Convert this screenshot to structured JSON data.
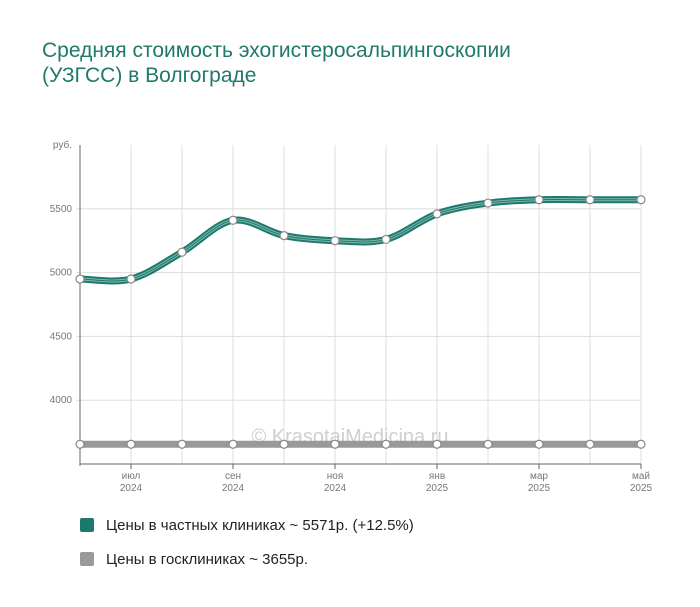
{
  "title": "Средняя стоимость эхогистеросальпингоскопии (УЗГСС) в Волгограде",
  "watermark": "© KrasotaiMedicina.ru",
  "colors": {
    "private": "#1b7a6c",
    "public": "#999999",
    "grid": "#dddddd",
    "axis": "#666666",
    "tick_text": "#777777"
  },
  "legend": [
    {
      "label": "Цены в частных клиниках ~ 5571р. (+12.5%)",
      "color": "#1b7a6c"
    },
    {
      "label": "Цены в госклиниках ~ 3655р.",
      "color": "#999999"
    }
  ],
  "chart_data": {
    "type": "line",
    "ylabel": "руб.",
    "ylim": [
      3500,
      6000
    ],
    "yticks": [
      4000,
      4500,
      5000,
      5500
    ],
    "x": [
      "2024-06",
      "2024-07",
      "2024-08",
      "2024-09",
      "2024-10",
      "2024-11",
      "2024-12",
      "2025-01",
      "2025-02",
      "2025-03",
      "2025-04",
      "2025-05"
    ],
    "xtick_labels": [
      {
        "month": "июл",
        "year": "2024"
      },
      {
        "month": "сен",
        "year": "2024"
      },
      {
        "month": "ноя",
        "year": "2024"
      },
      {
        "month": "янв",
        "year": "2025"
      },
      {
        "month": "мар",
        "year": "2025"
      },
      {
        "month": "май",
        "year": "2025"
      }
    ],
    "xtick_positions": [
      1,
      3,
      5,
      7,
      9,
      11
    ],
    "grid": true,
    "series": [
      {
        "name": "Цены в частных клиниках ~ 5571р. (+12.5%)",
        "values": [
          4950,
          4950,
          5160,
          5410,
          5290,
          5250,
          5260,
          5460,
          5545,
          5571,
          5571,
          5571
        ]
      },
      {
        "name": "Цены в госклиниках ~ 3655р.",
        "values": [
          3655,
          3655,
          3655,
          3655,
          3655,
          3655,
          3655,
          3655,
          3655,
          3655,
          3655,
          3655
        ]
      }
    ]
  }
}
